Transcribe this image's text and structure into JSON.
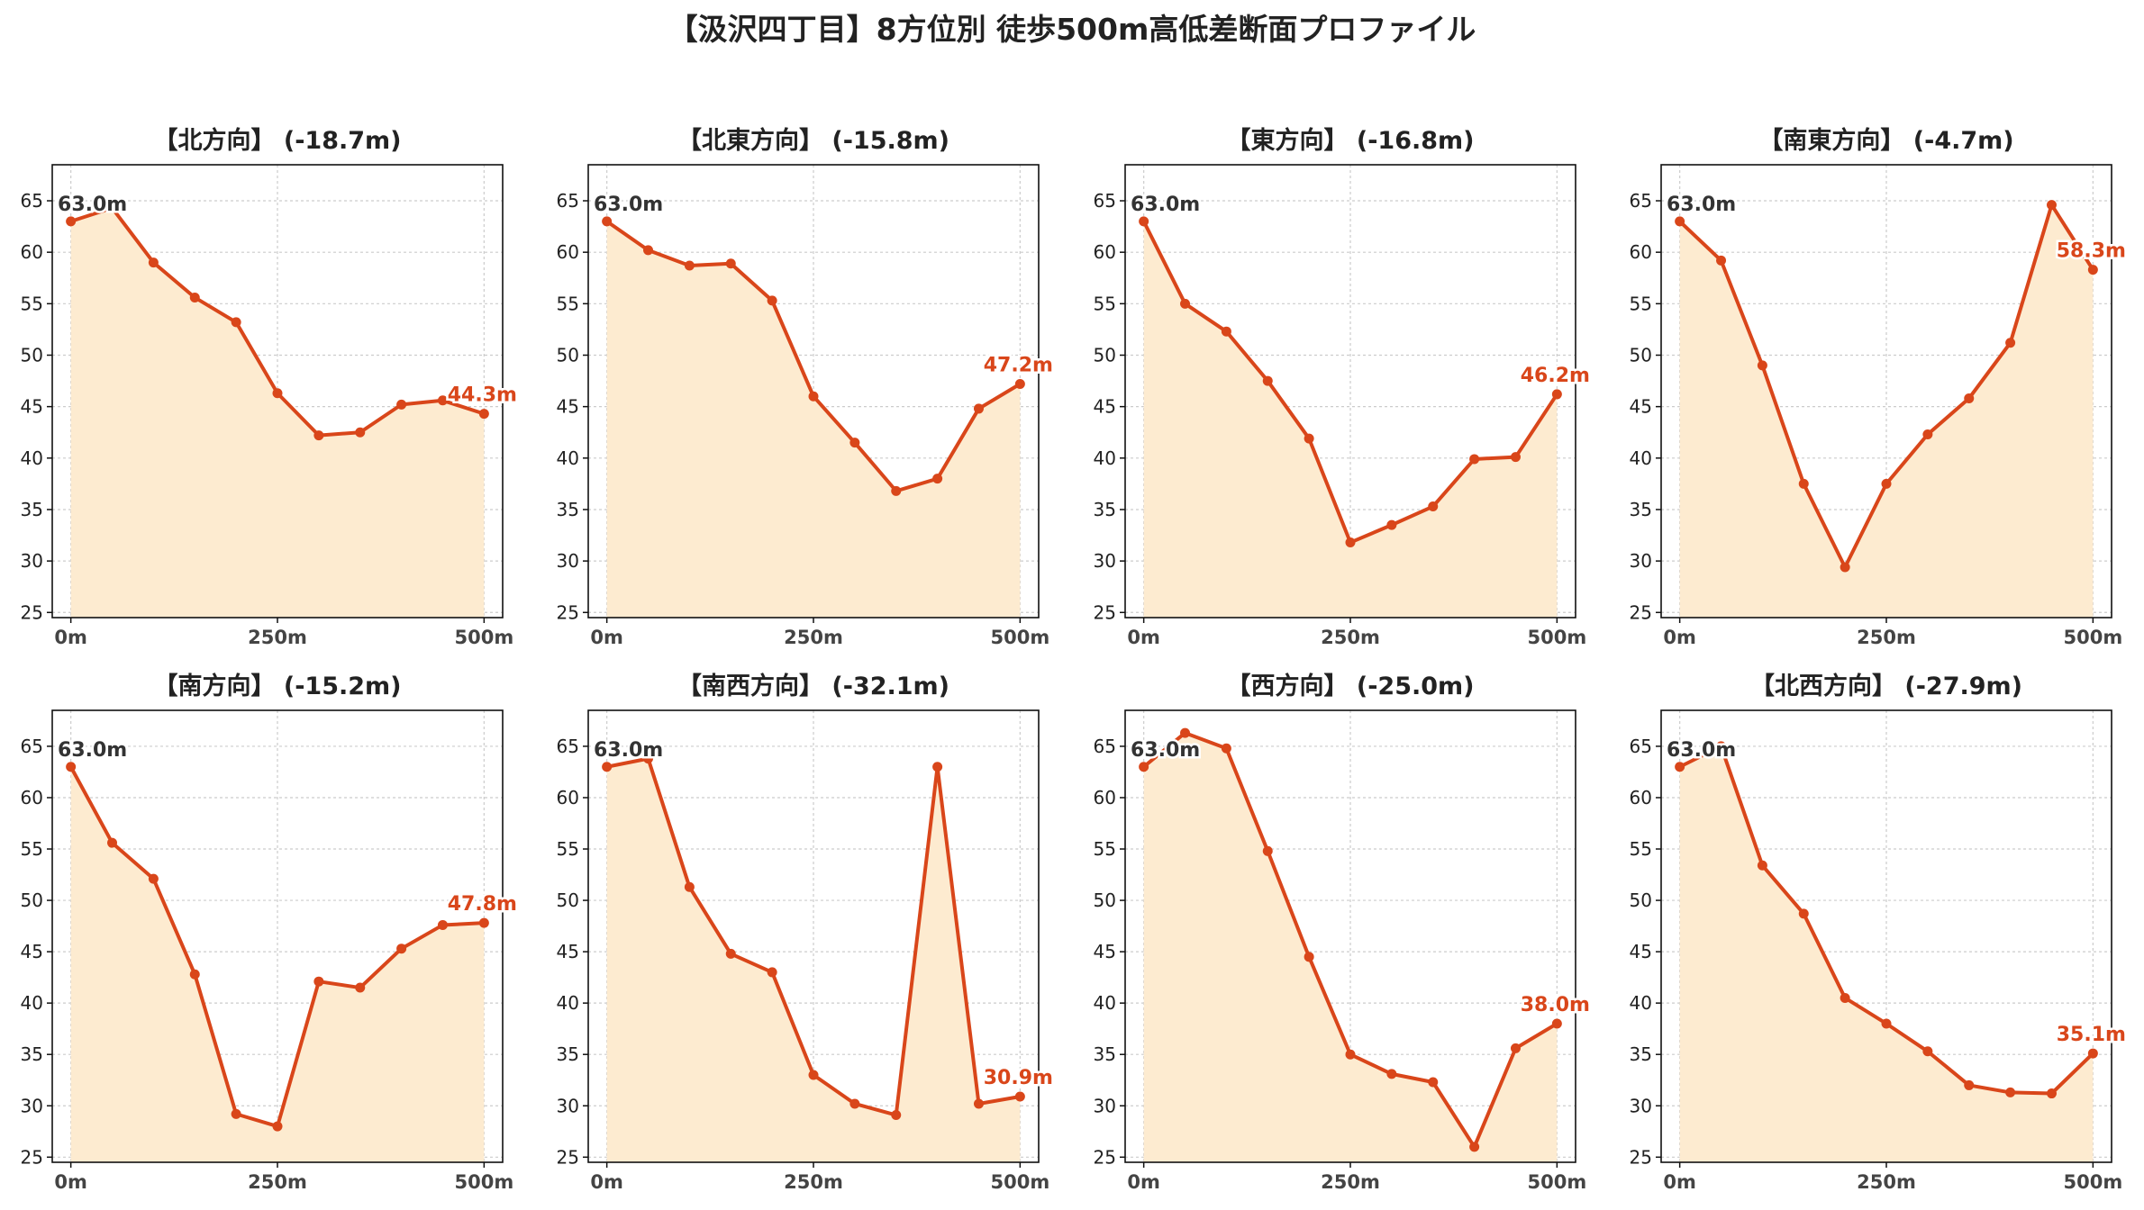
{
  "suptitle": "【汲沢四丁目】8方位別 徒歩500m高低差断面プロファイル",
  "colors": {
    "line": "#d9461a",
    "fill": "#fdebd0",
    "start_label": "#333333",
    "grid": "#cccccc"
  },
  "chart_data": [
    {
      "type": "area",
      "title": "【北方向】 (-18.7m)",
      "x": [
        0,
        50,
        100,
        150,
        200,
        250,
        300,
        350,
        400,
        450,
        500
      ],
      "values": [
        63.0,
        64.3,
        59.0,
        55.6,
        53.2,
        46.3,
        42.2,
        42.5,
        45.2,
        45.6,
        44.3
      ],
      "start_label": "63.0m",
      "end_label": "44.3m",
      "xticks": [
        "0m",
        "250m",
        "500m"
      ],
      "yticks": [
        25,
        30,
        35,
        40,
        45,
        50,
        55,
        60,
        65
      ],
      "ylim": [
        24.5,
        68.5
      ],
      "grid": true
    },
    {
      "type": "area",
      "title": "【北東方向】 (-15.8m)",
      "x": [
        0,
        50,
        100,
        150,
        200,
        250,
        300,
        350,
        400,
        450,
        500
      ],
      "values": [
        63.0,
        60.2,
        58.7,
        58.9,
        55.3,
        46.0,
        41.5,
        36.8,
        38.0,
        44.8,
        47.2
      ],
      "start_label": "63.0m",
      "end_label": "47.2m",
      "xticks": [
        "0m",
        "250m",
        "500m"
      ],
      "yticks": [
        25,
        30,
        35,
        40,
        45,
        50,
        55,
        60,
        65
      ],
      "ylim": [
        24.5,
        68.5
      ],
      "grid": true
    },
    {
      "type": "area",
      "title": "【東方向】 (-16.8m)",
      "x": [
        0,
        50,
        100,
        150,
        200,
        250,
        300,
        350,
        400,
        450,
        500
      ],
      "values": [
        63.0,
        55.0,
        52.3,
        47.5,
        41.9,
        31.8,
        33.5,
        35.3,
        39.9,
        40.1,
        46.2
      ],
      "start_label": "63.0m",
      "end_label": "46.2m",
      "xticks": [
        "0m",
        "250m",
        "500m"
      ],
      "yticks": [
        25,
        30,
        35,
        40,
        45,
        50,
        55,
        60,
        65
      ],
      "ylim": [
        24.5,
        68.5
      ],
      "grid": true
    },
    {
      "type": "area",
      "title": "【南東方向】 (-4.7m)",
      "x": [
        0,
        50,
        100,
        150,
        200,
        250,
        300,
        350,
        400,
        450,
        500
      ],
      "values": [
        63.0,
        59.2,
        49.0,
        37.5,
        29.4,
        37.5,
        42.3,
        45.8,
        51.2,
        64.6,
        58.3
      ],
      "start_label": "63.0m",
      "end_label": "58.3m",
      "xticks": [
        "0m",
        "250m",
        "500m"
      ],
      "yticks": [
        25,
        30,
        35,
        40,
        45,
        50,
        55,
        60,
        65
      ],
      "ylim": [
        24.5,
        68.5
      ],
      "grid": true
    },
    {
      "type": "area",
      "title": "【南方向】 (-15.2m)",
      "x": [
        0,
        50,
        100,
        150,
        200,
        250,
        300,
        350,
        400,
        450,
        500
      ],
      "values": [
        63.0,
        55.6,
        52.1,
        42.8,
        29.2,
        28.0,
        42.1,
        41.5,
        45.3,
        47.6,
        47.8
      ],
      "start_label": "63.0m",
      "end_label": "47.8m",
      "xticks": [
        "0m",
        "250m",
        "500m"
      ],
      "yticks": [
        25,
        30,
        35,
        40,
        45,
        50,
        55,
        60,
        65
      ],
      "ylim": [
        24.5,
        68.5
      ],
      "grid": true
    },
    {
      "type": "area",
      "title": "【南西方向】 (-32.1m)",
      "x": [
        0,
        50,
        100,
        150,
        200,
        250,
        300,
        350,
        400,
        450,
        500
      ],
      "values": [
        63.0,
        63.8,
        51.3,
        44.8,
        43.0,
        33.0,
        30.2,
        29.1,
        63.0,
        30.2,
        30.9
      ],
      "start_label": "63.0m",
      "end_label": "30.9m",
      "xticks": [
        "0m",
        "250m",
        "500m"
      ],
      "yticks": [
        25,
        30,
        35,
        40,
        45,
        50,
        55,
        60,
        65
      ],
      "ylim": [
        24.5,
        68.5
      ],
      "grid": true
    },
    {
      "type": "area",
      "title": "【西方向】 (-25.0m)",
      "x": [
        0,
        50,
        100,
        150,
        200,
        250,
        300,
        350,
        400,
        450,
        500
      ],
      "values": [
        63.0,
        66.3,
        64.8,
        54.8,
        44.5,
        35.0,
        33.1,
        32.3,
        26.0,
        35.6,
        38.0
      ],
      "start_label": "63.0m",
      "end_label": "38.0m",
      "xticks": [
        "0m",
        "250m",
        "500m"
      ],
      "yticks": [
        25,
        30,
        35,
        40,
        45,
        50,
        55,
        60,
        65
      ],
      "ylim": [
        24.5,
        68.5
      ],
      "grid": true
    },
    {
      "type": "area",
      "title": "【北西方向】 (-27.9m)",
      "x": [
        0,
        50,
        100,
        150,
        200,
        250,
        300,
        350,
        400,
        450,
        500
      ],
      "values": [
        63.0,
        65.0,
        53.4,
        48.7,
        40.5,
        38.0,
        35.3,
        32.0,
        31.3,
        31.2,
        35.1
      ],
      "start_label": "63.0m",
      "end_label": "35.1m",
      "xticks": [
        "0m",
        "250m",
        "500m"
      ],
      "yticks": [
        25,
        30,
        35,
        40,
        45,
        50,
        55,
        60,
        65
      ],
      "ylim": [
        24.5,
        68.5
      ],
      "grid": true
    }
  ]
}
